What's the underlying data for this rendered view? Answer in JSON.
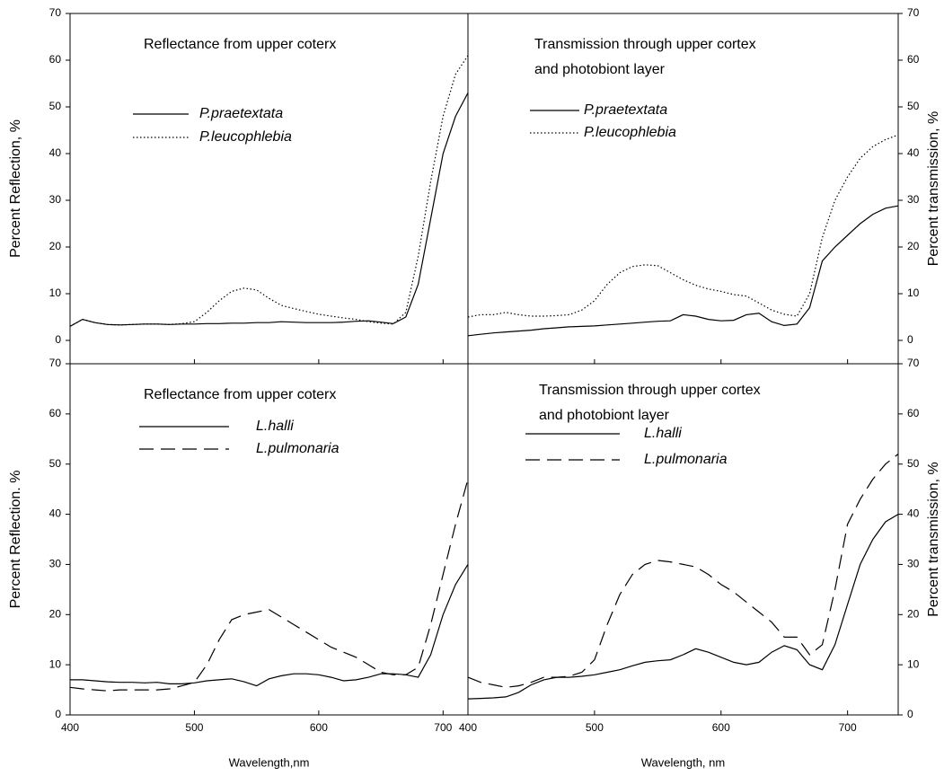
{
  "chart_data": [
    {
      "type": "line",
      "annotation": [
        "Reflectance from upper coterx"
      ],
      "y_label": "Percent Reflection, %",
      "y_axis_side": "left",
      "x_tick_labels": false,
      "x": [
        400,
        410,
        420,
        430,
        440,
        450,
        460,
        470,
        480,
        490,
        500,
        510,
        520,
        530,
        540,
        550,
        560,
        570,
        580,
        590,
        600,
        610,
        620,
        630,
        640,
        650,
        660,
        670,
        680,
        690,
        700,
        710,
        720
      ],
      "xlim": [
        400,
        720
      ],
      "xticks": [
        400,
        500,
        600,
        700
      ],
      "ylim": [
        -5,
        70
      ],
      "yticks": [
        0,
        10,
        20,
        30,
        40,
        50,
        60,
        70
      ],
      "series": [
        {
          "name": "P.praetextata",
          "color": "#000000",
          "dash": "solid",
          "values": [
            3,
            4.5,
            3.8,
            3.4,
            3.3,
            3.4,
            3.5,
            3.5,
            3.4,
            3.5,
            3.5,
            3.6,
            3.6,
            3.7,
            3.7,
            3.8,
            3.8,
            4,
            3.9,
            3.8,
            3.8,
            3.8,
            3.9,
            4.1,
            4.2,
            3.9,
            3.6,
            5,
            12,
            26,
            40,
            48,
            53
          ]
        },
        {
          "name": "P.leucophlebia",
          "color": "#000000",
          "dash": "dotted",
          "values": [
            3,
            4.5,
            3.8,
            3.4,
            3.3,
            3.4,
            3.5,
            3.5,
            3.4,
            3.6,
            4,
            6,
            8.5,
            10.5,
            11.2,
            10.8,
            9,
            7.5,
            6.8,
            6.2,
            5.6,
            5.2,
            4.8,
            4.5,
            4,
            3.7,
            3.5,
            6,
            18,
            34,
            48,
            57,
            61
          ]
        }
      ]
    },
    {
      "type": "line",
      "annotation": [
        "Transmission through upper cortex",
        "and photobiont layer"
      ],
      "y_label": "Percent transmission, %",
      "y_axis_side": "right",
      "x_tick_labels": false,
      "x": [
        400,
        410,
        420,
        430,
        440,
        450,
        460,
        470,
        480,
        490,
        500,
        510,
        520,
        530,
        540,
        550,
        560,
        570,
        580,
        590,
        600,
        610,
        620,
        630,
        640,
        650,
        660,
        670,
        680,
        690,
        700,
        710,
        720,
        730,
        740
      ],
      "xlim": [
        400,
        740
      ],
      "xticks": [
        400,
        500,
        600,
        700
      ],
      "ylim": [
        -5,
        70
      ],
      "yticks": [
        0,
        10,
        20,
        30,
        40,
        50,
        60,
        70
      ],
      "series": [
        {
          "name": "P.praetextata",
          "color": "#000000",
          "dash": "solid",
          "values": [
            1,
            1.3,
            1.6,
            1.8,
            2,
            2.2,
            2.5,
            2.7,
            2.9,
            3,
            3.1,
            3.3,
            3.5,
            3.7,
            3.9,
            4.1,
            4.2,
            5.5,
            5.2,
            4.5,
            4.2,
            4.3,
            5.5,
            5.8,
            4,
            3.2,
            3.5,
            7,
            17,
            20,
            22.5,
            25,
            27,
            28.3,
            28.8
          ]
        },
        {
          "name": "P.leucophlebia",
          "color": "#000000",
          "dash": "dotted",
          "values": [
            5,
            5.5,
            5.5,
            6,
            5.5,
            5.2,
            5.2,
            5.3,
            5.5,
            6.5,
            8.5,
            12,
            14.5,
            15.8,
            16.2,
            16,
            14.5,
            13,
            11.8,
            11,
            10.5,
            9.8,
            9.5,
            8,
            6.5,
            5.6,
            5.2,
            10,
            22,
            30,
            35,
            39,
            41.5,
            43,
            44
          ]
        }
      ]
    },
    {
      "type": "line",
      "annotation": [
        "Reflectance from upper coterx"
      ],
      "y_label": "Percent Reflection. %",
      "x_label": "Wavelength,nm",
      "y_axis_side": "left",
      "x_tick_labels": true,
      "x": [
        400,
        410,
        420,
        430,
        440,
        450,
        460,
        470,
        480,
        490,
        500,
        510,
        520,
        530,
        540,
        550,
        560,
        570,
        580,
        590,
        600,
        610,
        620,
        630,
        640,
        650,
        660,
        670,
        680,
        690,
        700,
        710,
        720
      ],
      "xlim": [
        400,
        720
      ],
      "xticks": [
        400,
        500,
        600,
        700
      ],
      "ylim": [
        0,
        70
      ],
      "yticks": [
        0,
        10,
        20,
        30,
        40,
        50,
        60,
        70
      ],
      "series": [
        {
          "name": "L.halli",
          "color": "#000000",
          "dash": "solid",
          "values": [
            7,
            7,
            6.8,
            6.6,
            6.5,
            6.5,
            6.4,
            6.5,
            6.2,
            6.2,
            6.4,
            6.8,
            7,
            7.2,
            6.6,
            5.8,
            7.2,
            7.8,
            8.2,
            8.2,
            8,
            7.5,
            6.8,
            7,
            7.5,
            8.2,
            8.2,
            8,
            7.5,
            12,
            20,
            26,
            30
          ]
        },
        {
          "name": "L.pulmonaria",
          "color": "#000000",
          "dash": "dashed",
          "values": [
            5.5,
            5.2,
            5,
            4.8,
            5,
            5,
            5,
            5,
            5.2,
            5.8,
            6.5,
            10,
            15,
            19,
            20,
            20.5,
            21,
            19.5,
            18,
            16.5,
            15,
            13.5,
            12.5,
            11.5,
            10,
            8.5,
            8,
            8,
            9.5,
            18,
            28,
            38,
            47
          ]
        }
      ]
    },
    {
      "type": "line",
      "annotation": [
        "Transmission through upper cortex",
        "and photobiont layer"
      ],
      "y_label": "Percent transmission, %",
      "x_label": "Wavelength, nm",
      "y_axis_side": "right",
      "x_tick_labels": true,
      "x": [
        400,
        410,
        420,
        430,
        440,
        450,
        460,
        470,
        480,
        490,
        500,
        510,
        520,
        530,
        540,
        550,
        560,
        570,
        580,
        590,
        600,
        610,
        620,
        630,
        640,
        650,
        660,
        670,
        680,
        690,
        700,
        710,
        720,
        730,
        740
      ],
      "xlim": [
        400,
        740
      ],
      "xticks": [
        400,
        500,
        600,
        700
      ],
      "ylim": [
        0,
        70
      ],
      "yticks": [
        0,
        10,
        20,
        30,
        40,
        50,
        60,
        70
      ],
      "series": [
        {
          "name": "L.halli",
          "color": "#000000",
          "dash": "solid",
          "values": [
            3.2,
            3.3,
            3.4,
            3.6,
            4.5,
            6,
            7,
            7.5,
            7.5,
            7.7,
            8,
            8.5,
            9,
            9.8,
            10.5,
            10.8,
            11,
            12,
            13.2,
            12.5,
            11.5,
            10.5,
            10,
            10.5,
            12.5,
            13.8,
            13,
            10,
            9,
            14,
            22,
            30,
            35,
            38.5,
            40
          ]
        },
        {
          "name": "L.pulmonaria",
          "color": "#000000",
          "dash": "dashed",
          "values": [
            7.5,
            6.5,
            6,
            5.5,
            5.8,
            6.5,
            7.5,
            7.5,
            7.7,
            8.5,
            11,
            18,
            24,
            28,
            30,
            30.8,
            30.5,
            30,
            29.5,
            28,
            26,
            24.5,
            22.5,
            20.5,
            18.5,
            15.5,
            15.5,
            12,
            14,
            25,
            38,
            43,
            47,
            50,
            52
          ]
        }
      ]
    }
  ]
}
